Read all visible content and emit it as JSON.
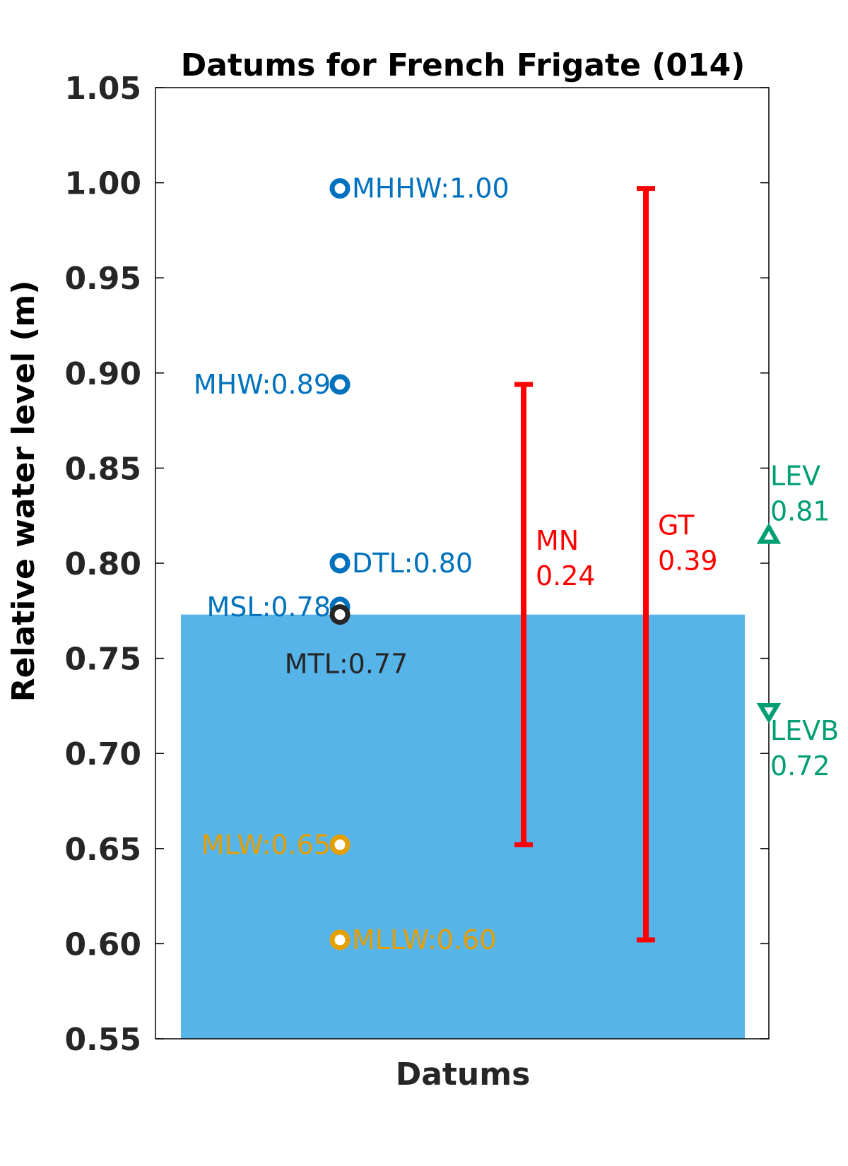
{
  "chart_data": {
    "type": "scatter",
    "title": "Datums for French Frigate (014)",
    "xlabel": "Datums",
    "ylabel": "Relative water level (m)",
    "ylim": [
      0.55,
      1.05
    ],
    "yticks": [
      "0.55",
      "0.60",
      "0.65",
      "0.70",
      "0.75",
      "0.80",
      "0.85",
      "0.90",
      "0.95",
      "1.00",
      "1.05"
    ],
    "grid": false,
    "colors": {
      "blue": "#0072bd",
      "orange": "#e69f00",
      "dark": "#262626",
      "red": "#ff0000",
      "green": "#009e73",
      "fill": "#56b4e9"
    },
    "water_level_fill": 0.773,
    "datums": [
      {
        "label": "MHHW:1.00",
        "value": 0.997,
        "color": "blue",
        "side": "right"
      },
      {
        "label": "MHW:0.89",
        "value": 0.894,
        "color": "blue",
        "side": "left"
      },
      {
        "label": "DTL:0.80",
        "value": 0.8,
        "color": "blue",
        "side": "right"
      },
      {
        "label": "MSL:0.78",
        "value": 0.777,
        "color": "blue",
        "side": "left"
      },
      {
        "label": "MTL:0.77",
        "value": 0.773,
        "color": "dark",
        "side": "below"
      },
      {
        "label": "MLW:0.65",
        "value": 0.652,
        "color": "orange",
        "side": "left"
      },
      {
        "label": "MLLW:0.60",
        "value": 0.602,
        "color": "orange",
        "side": "right"
      }
    ],
    "ranges": [
      {
        "name": "MN",
        "value": "0.24",
        "low": 0.652,
        "high": 0.894
      },
      {
        "name": "GT",
        "value": "0.39",
        "low": 0.602,
        "high": 0.997
      }
    ],
    "levels": [
      {
        "name": "LEV",
        "value": "0.81",
        "y": 0.815,
        "marker": "triangle-up"
      },
      {
        "name": "LEVB",
        "value": "0.72",
        "y": 0.722,
        "marker": "triangle-down"
      }
    ]
  }
}
